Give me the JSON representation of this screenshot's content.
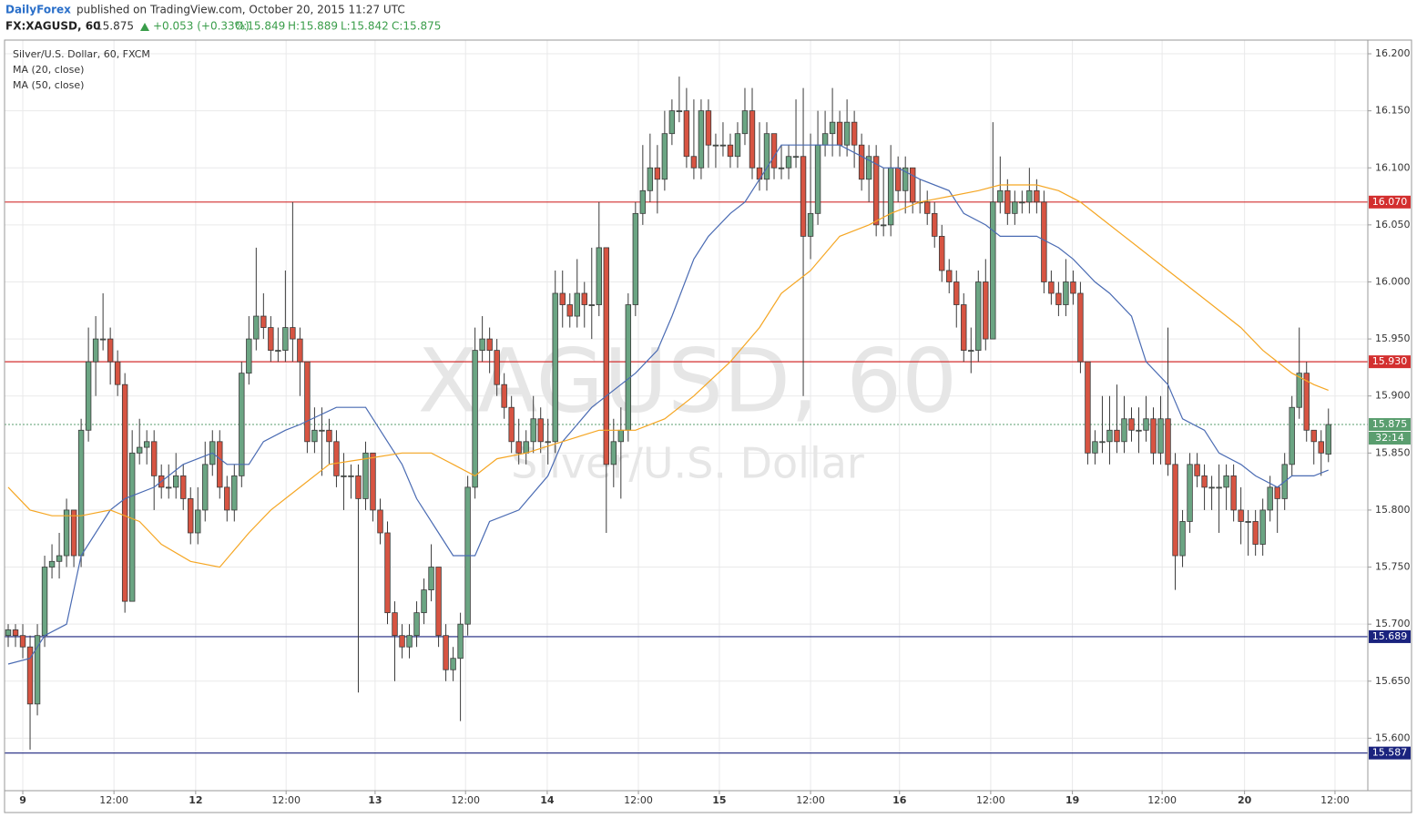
{
  "header": {
    "brand": "DailyForex",
    "published": "published on TradingView.com, October 20, 2015 11:27 UTC"
  },
  "quote": {
    "symbol": "FX:XAGUSD, 60",
    "last": "15.875",
    "change": "+0.053 (+0.33%)",
    "open": "O:15.849",
    "high": "H:15.889",
    "low": "L:15.842",
    "close": "C:15.875"
  },
  "chart_data": {
    "type": "candlestick",
    "watermark": "XAGUSD, 60",
    "watermark_subtitle": "Silver/U.S. Dollar",
    "grid": true,
    "xlim": [
      -0.5,
      186.4
    ],
    "xticks": [
      {
        "value": 2,
        "label": "9"
      },
      {
        "value": 14.5,
        "label": "12:00"
      },
      {
        "value": 25.7,
        "label": "12"
      },
      {
        "value": 38.1,
        "label": "12:00"
      },
      {
        "value": 50.3,
        "label": "13"
      },
      {
        "value": 62.7,
        "label": "12:00"
      },
      {
        "value": 73.9,
        "label": "14"
      },
      {
        "value": 86.4,
        "label": "12:00"
      },
      {
        "value": 97.5,
        "label": "15"
      },
      {
        "value": 110,
        "label": "12:00"
      },
      {
        "value": 122.2,
        "label": "16"
      },
      {
        "value": 134.7,
        "label": "12:00"
      },
      {
        "value": 145.9,
        "label": "19"
      },
      {
        "value": 158.2,
        "label": "12:00"
      },
      {
        "value": 169.5,
        "label": "20"
      },
      {
        "value": 181.9,
        "label": "12:00"
      }
    ],
    "ylim": [
      15.554,
      16.212
    ],
    "yticks": [
      {
        "value": 15.6,
        "label": "15.600"
      },
      {
        "value": 15.65,
        "label": "15.650"
      },
      {
        "value": 15.7,
        "label": "15.700"
      },
      {
        "value": 15.75,
        "label": "15.750"
      },
      {
        "value": 15.8,
        "label": "15.800"
      },
      {
        "value": 15.85,
        "label": "15.850"
      },
      {
        "value": 15.9,
        "label": "15.900"
      },
      {
        "value": 15.95,
        "label": "15.950"
      },
      {
        "value": 16.0,
        "label": "16.000"
      },
      {
        "value": 16.05,
        "label": "16.050"
      },
      {
        "value": 16.1,
        "label": "16.100"
      },
      {
        "value": 16.15,
        "label": "16.150"
      },
      {
        "value": 16.2,
        "label": "16.200"
      }
    ],
    "series": [
      {
        "name": "Silver/U.S. Dollar, 60, FXCM",
        "up_color": "#6ba583",
        "down_color": "#d75442",
        "open": [
          15.69,
          15.695,
          15.69,
          15.68,
          15.63,
          15.69,
          15.75,
          15.755,
          15.76,
          15.8,
          15.76,
          15.87,
          15.93,
          15.95,
          15.95,
          15.93,
          15.91,
          15.72,
          15.85,
          15.855,
          15.86,
          15.83,
          15.82,
          15.82,
          15.83,
          15.81,
          15.78,
          15.8,
          15.84,
          15.86,
          15.82,
          15.8,
          15.83,
          15.92,
          15.95,
          15.97,
          15.96,
          15.94,
          15.94,
          15.96,
          15.95,
          15.93,
          15.86,
          15.87,
          15.87,
          15.86,
          15.83,
          15.83,
          15.83,
          15.81,
          15.85,
          15.8,
          15.78,
          15.71,
          15.69,
          15.68,
          15.69,
          15.71,
          15.73,
          15.75,
          15.69,
          15.66,
          15.67,
          15.7,
          15.82,
          15.94,
          15.95,
          15.94,
          15.91,
          15.89,
          15.86,
          15.85,
          15.86,
          15.88,
          15.86,
          15.86,
          15.99,
          15.98,
          15.97,
          15.99,
          15.98,
          15.98,
          16.03,
          15.84,
          15.86,
          15.87,
          15.98,
          16.06,
          16.08,
          16.1,
          16.09,
          16.13,
          16.15,
          16.15,
          16.11,
          16.1,
          16.15,
          16.12,
          16.12,
          16.12,
          16.11,
          16.13,
          16.15,
          16.1,
          16.09,
          16.13,
          16.1,
          16.1,
          16.11,
          16.11,
          16.04,
          16.06,
          16.12,
          16.13,
          16.14,
          16.12,
          16.14,
          16.12,
          16.09,
          16.11,
          16.05,
          16.05,
          16.1,
          16.08,
          16.1,
          16.07,
          16.07,
          16.06,
          16.04,
          16.01,
          16.0,
          15.98,
          15.94,
          15.94,
          16.0,
          15.95,
          16.07,
          16.08,
          16.06,
          16.07,
          16.07,
          16.08,
          16.07,
          16.0,
          15.99,
          15.98,
          16.0,
          15.99,
          15.93,
          15.85,
          15.86,
          15.86,
          15.87,
          15.86,
          15.88,
          15.87,
          15.87,
          15.88,
          15.85,
          15.88,
          15.84,
          15.76,
          15.79,
          15.84,
          15.83,
          15.82,
          15.82,
          15.82,
          15.83,
          15.8,
          15.79,
          15.79,
          15.77,
          15.8,
          15.82,
          15.81,
          15.84,
          15.89,
          15.92,
          15.87,
          15.86,
          15.849
        ],
        "high": [
          15.7,
          15.7,
          15.7,
          15.69,
          15.7,
          15.76,
          15.77,
          15.78,
          15.81,
          15.8,
          15.88,
          15.96,
          15.97,
          15.99,
          15.96,
          15.94,
          15.92,
          15.87,
          15.88,
          15.87,
          15.87,
          15.84,
          15.84,
          15.85,
          15.84,
          15.82,
          15.82,
          15.86,
          15.87,
          15.87,
          15.83,
          15.84,
          15.93,
          15.97,
          16.03,
          15.99,
          15.97,
          15.96,
          16.01,
          16.07,
          15.96,
          15.93,
          15.89,
          15.89,
          15.88,
          15.87,
          15.85,
          15.84,
          15.84,
          15.86,
          15.85,
          15.81,
          15.79,
          15.72,
          15.7,
          15.7,
          15.72,
          15.74,
          15.77,
          15.75,
          15.7,
          15.68,
          15.71,
          15.83,
          15.96,
          15.97,
          15.96,
          15.95,
          15.92,
          15.9,
          15.88,
          15.87,
          15.9,
          15.89,
          15.88,
          16.01,
          16.01,
          15.99,
          16.02,
          16.0,
          16.03,
          16.07,
          16.03,
          15.88,
          15.89,
          15.99,
          16.07,
          16.12,
          16.13,
          16.12,
          16.15,
          16.16,
          16.18,
          16.17,
          16.16,
          16.16,
          16.16,
          16.13,
          16.14,
          16.13,
          16.14,
          16.17,
          16.17,
          16.14,
          16.14,
          16.13,
          16.12,
          16.12,
          16.16,
          16.17,
          16.13,
          16.15,
          16.15,
          16.17,
          16.15,
          16.16,
          16.15,
          16.13,
          16.12,
          16.12,
          16.1,
          16.12,
          16.11,
          16.11,
          16.1,
          16.09,
          16.08,
          16.07,
          16.05,
          16.02,
          16.01,
          15.99,
          15.96,
          16.01,
          16.02,
          16.14,
          16.11,
          16.09,
          16.08,
          16.08,
          16.1,
          16.09,
          16.08,
          16.01,
          16.0,
          16.02,
          16.01,
          16.0,
          15.93,
          15.87,
          15.9,
          15.9,
          15.91,
          15.9,
          15.89,
          15.89,
          15.9,
          15.89,
          15.9,
          15.96,
          15.85,
          15.8,
          15.85,
          15.85,
          15.84,
          15.83,
          15.84,
          15.84,
          15.84,
          15.82,
          15.8,
          15.8,
          15.81,
          15.83,
          15.82,
          15.85,
          15.9,
          15.96,
          15.93,
          15.87,
          15.87,
          15.889
        ],
        "low": [
          15.68,
          15.68,
          15.67,
          15.59,
          15.62,
          15.68,
          15.74,
          15.74,
          15.75,
          15.75,
          15.75,
          15.86,
          15.9,
          15.94,
          15.91,
          15.9,
          15.71,
          15.72,
          15.84,
          15.84,
          15.8,
          15.81,
          15.81,
          15.81,
          15.8,
          15.77,
          15.77,
          15.79,
          15.83,
          15.81,
          15.79,
          15.79,
          15.82,
          15.91,
          15.94,
          15.95,
          15.93,
          15.93,
          15.93,
          15.93,
          15.9,
          15.85,
          15.85,
          15.83,
          15.84,
          15.82,
          15.8,
          15.81,
          15.64,
          15.8,
          15.79,
          15.77,
          15.7,
          15.65,
          15.67,
          15.67,
          15.68,
          15.7,
          15.72,
          15.68,
          15.65,
          15.65,
          15.615,
          15.69,
          15.81,
          15.93,
          15.92,
          15.9,
          15.88,
          15.85,
          15.84,
          15.84,
          15.85,
          15.85,
          15.84,
          15.85,
          15.96,
          15.96,
          15.96,
          15.96,
          15.95,
          15.97,
          15.78,
          15.82,
          15.81,
          15.86,
          15.97,
          16.05,
          16.07,
          16.06,
          16.08,
          16.12,
          16.14,
          16.1,
          16.09,
          16.09,
          16.1,
          16.1,
          16.11,
          16.1,
          16.1,
          16.12,
          16.09,
          16.08,
          16.08,
          16.09,
          16.09,
          16.09,
          16.1,
          15.9,
          16.02,
          16.05,
          16.11,
          16.11,
          16.11,
          16.11,
          16.1,
          16.08,
          16.07,
          16.04,
          16.04,
          16.04,
          16.07,
          16.06,
          16.06,
          16.06,
          16.05,
          16.03,
          16.0,
          15.99,
          15.96,
          15.93,
          15.92,
          15.93,
          15.94,
          15.95,
          16.06,
          16.05,
          16.05,
          16.06,
          16.06,
          16.06,
          15.99,
          15.98,
          15.97,
          15.97,
          15.98,
          15.92,
          15.84,
          15.84,
          15.85,
          15.84,
          15.85,
          15.85,
          15.86,
          15.85,
          15.86,
          15.84,
          15.84,
          15.83,
          15.73,
          15.75,
          15.78,
          15.82,
          15.8,
          15.8,
          15.78,
          15.8,
          15.79,
          15.77,
          15.76,
          15.76,
          15.76,
          15.79,
          15.78,
          15.8,
          15.83,
          15.88,
          15.86,
          15.84,
          15.83,
          15.842
        ],
        "close": [
          15.695,
          15.69,
          15.68,
          15.63,
          15.69,
          15.75,
          15.755,
          15.76,
          15.8,
          15.76,
          15.87,
          15.93,
          15.95,
          15.95,
          15.93,
          15.91,
          15.72,
          15.85,
          15.855,
          15.86,
          15.83,
          15.82,
          15.82,
          15.83,
          15.81,
          15.78,
          15.8,
          15.84,
          15.86,
          15.82,
          15.8,
          15.83,
          15.92,
          15.95,
          15.97,
          15.96,
          15.94,
          15.94,
          15.96,
          15.95,
          15.93,
          15.86,
          15.87,
          15.87,
          15.86,
          15.83,
          15.83,
          15.83,
          15.81,
          15.85,
          15.8,
          15.78,
          15.71,
          15.69,
          15.68,
          15.69,
          15.71,
          15.73,
          15.75,
          15.69,
          15.66,
          15.67,
          15.7,
          15.82,
          15.94,
          15.95,
          15.94,
          15.91,
          15.89,
          15.86,
          15.85,
          15.86,
          15.88,
          15.86,
          15.86,
          15.99,
          15.98,
          15.97,
          15.99,
          15.98,
          15.98,
          16.03,
          15.84,
          15.86,
          15.87,
          15.98,
          16.06,
          16.08,
          16.1,
          16.09,
          16.13,
          16.15,
          16.15,
          16.11,
          16.1,
          16.15,
          16.12,
          16.12,
          16.12,
          16.11,
          16.13,
          16.15,
          16.1,
          16.09,
          16.13,
          16.1,
          16.1,
          16.11,
          16.11,
          16.04,
          16.06,
          16.12,
          16.13,
          16.14,
          16.12,
          16.14,
          16.12,
          16.09,
          16.11,
          16.05,
          16.05,
          16.1,
          16.08,
          16.1,
          16.07,
          16.07,
          16.06,
          16.04,
          16.01,
          16.0,
          15.98,
          15.94,
          15.94,
          16.0,
          15.95,
          16.07,
          16.08,
          16.06,
          16.07,
          16.07,
          16.08,
          16.07,
          16.0,
          15.99,
          15.98,
          16.0,
          15.99,
          15.93,
          15.85,
          15.86,
          15.86,
          15.87,
          15.86,
          15.88,
          15.87,
          15.87,
          15.88,
          15.85,
          15.88,
          15.84,
          15.76,
          15.79,
          15.84,
          15.83,
          15.82,
          15.82,
          15.82,
          15.83,
          15.8,
          15.79,
          15.79,
          15.77,
          15.8,
          15.82,
          15.81,
          15.84,
          15.89,
          15.92,
          15.87,
          15.86,
          15.85,
          15.875
        ]
      }
    ],
    "overlays": [
      {
        "name": "MA (20, close)",
        "color": "#4a6bb3",
        "x": [
          0,
          3,
          5,
          8,
          10,
          14,
          16,
          20,
          24,
          28,
          30,
          33,
          35,
          38,
          40,
          45,
          49,
          51,
          54,
          56,
          59,
          61,
          64,
          66,
          70,
          74,
          76,
          80,
          84,
          86,
          89,
          91,
          94,
          96,
          99,
          101,
          104,
          106,
          109,
          111,
          114,
          117,
          120,
          122,
          125,
          129,
          131,
          134,
          136,
          139,
          141,
          144,
          146,
          149,
          151,
          154,
          156,
          159,
          161,
          164,
          166,
          169,
          171,
          174,
          176,
          179,
          181
        ],
        "values": [
          15.665,
          15.67,
          15.69,
          15.7,
          15.76,
          15.8,
          15.81,
          15.82,
          15.84,
          15.85,
          15.84,
          15.84,
          15.86,
          15.87,
          15.875,
          15.89,
          15.89,
          15.87,
          15.84,
          15.81,
          15.78,
          15.76,
          15.76,
          15.79,
          15.8,
          15.83,
          15.86,
          15.89,
          15.91,
          15.92,
          15.94,
          15.97,
          16.02,
          16.04,
          16.06,
          16.07,
          16.1,
          16.12,
          16.12,
          16.12,
          16.12,
          16.11,
          16.1,
          16.1,
          16.09,
          16.08,
          16.06,
          16.05,
          16.04,
          16.04,
          16.04,
          16.03,
          16.02,
          16.0,
          15.99,
          15.97,
          15.93,
          15.91,
          15.88,
          15.87,
          15.85,
          15.84,
          15.83,
          15.82,
          15.83,
          15.83,
          15.835
        ]
      },
      {
        "name": "MA (50, close)",
        "color": "#f5a623",
        "x": [
          0,
          3,
          6,
          10,
          14,
          18,
          21,
          25,
          29,
          33,
          36,
          40,
          44,
          49,
          54,
          58,
          61,
          64,
          67,
          71,
          76,
          81,
          86,
          90,
          94,
          99,
          103,
          106,
          110,
          114,
          118,
          121,
          125,
          129,
          133,
          136,
          141,
          144,
          147,
          151,
          155,
          159,
          161,
          165,
          169,
          172,
          176,
          179,
          181
        ],
        "values": [
          15.82,
          15.8,
          15.795,
          15.795,
          15.8,
          15.79,
          15.77,
          15.755,
          15.75,
          15.78,
          15.8,
          15.82,
          15.84,
          15.845,
          15.85,
          15.85,
          15.84,
          15.83,
          15.845,
          15.85,
          15.86,
          15.87,
          15.87,
          15.88,
          15.9,
          15.93,
          15.96,
          15.99,
          16.01,
          16.04,
          16.05,
          16.06,
          16.07,
          16.075,
          16.08,
          16.085,
          16.085,
          16.08,
          16.07,
          16.05,
          16.03,
          16.01,
          16.0,
          15.98,
          15.96,
          15.94,
          15.92,
          15.91,
          15.905
        ]
      }
    ],
    "levels": [
      {
        "value": 16.07,
        "label": "16.070",
        "color": "#d32f2f",
        "style": "solid"
      },
      {
        "value": 15.93,
        "label": "15.930",
        "color": "#d32f2f",
        "style": "solid"
      },
      {
        "value": 15.689,
        "label": "15.689",
        "color": "#1a237e",
        "style": "solid"
      },
      {
        "value": 15.587,
        "label": "15.587",
        "color": "#1a237e",
        "style": "solid"
      },
      {
        "value": 15.875,
        "label": "15.875",
        "color": "#5a9e6f",
        "style": "dotted",
        "countdown": "32:14"
      }
    ]
  }
}
